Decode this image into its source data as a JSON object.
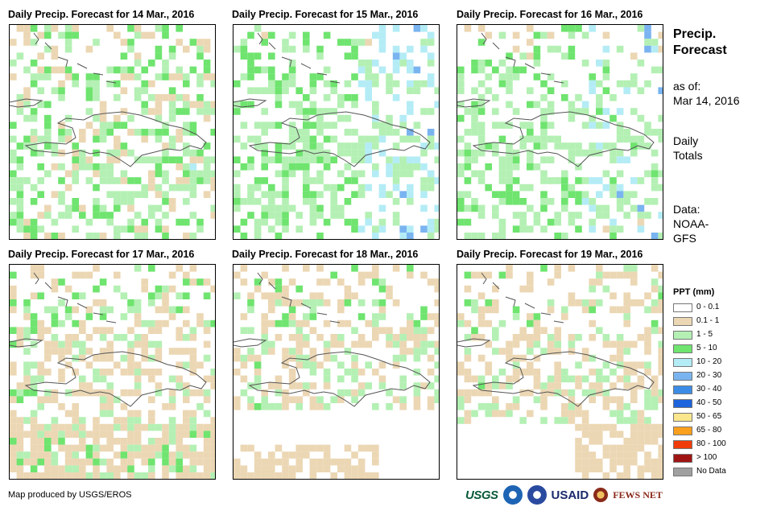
{
  "panels": [
    {
      "title": "Daily Precip. Forecast for 14 Mar., 2016"
    },
    {
      "title": "Daily Precip. Forecast for 15 Mar., 2016"
    },
    {
      "title": "Daily Precip. Forecast for 16 Mar., 2016"
    },
    {
      "title": "Daily Precip. Forecast for 17 Mar., 2016"
    },
    {
      "title": "Daily Precip. Forecast for 18 Mar., 2016"
    },
    {
      "title": "Daily Precip. Forecast for 19 Mar., 2016"
    }
  ],
  "side": {
    "title_line1": "Precip.",
    "title_line2": "Forecast",
    "asof_label": "as of:",
    "asof_date": "Mar 14, 2016",
    "totals_line1": "Daily",
    "totals_line2": "Totals",
    "data_line1": "Data:",
    "data_line2": "NOAA-",
    "data_line3": "GFS"
  },
  "legend": {
    "title": "PPT (mm)",
    "items": [
      {
        "label": "0 - 0.1",
        "color": "#ffffff"
      },
      {
        "label": "0.1 - 1",
        "color": "#ecd7b4"
      },
      {
        "label": "1 - 5",
        "color": "#b4f0b4"
      },
      {
        "label": "5 - 10",
        "color": "#6fe46f"
      },
      {
        "label": "10 - 20",
        "color": "#b4ecf6"
      },
      {
        "label": "20 - 30",
        "color": "#7ab4f0"
      },
      {
        "label": "30 - 40",
        "color": "#3c8ce6"
      },
      {
        "label": "40 - 50",
        "color": "#1e64dc"
      },
      {
        "label": "50 - 65",
        "color": "#fae68c"
      },
      {
        "label": "65 - 80",
        "color": "#faa01e"
      },
      {
        "label": "80 - 100",
        "color": "#f03c0a"
      },
      {
        "label": "> 100",
        "color": "#a01414"
      },
      {
        "label": "No Data",
        "color": "#a0a0a0"
      }
    ]
  },
  "footer": {
    "credit": "Map produced by USGS/EROS"
  },
  "logos": {
    "usgs": "USGS",
    "usaid": "USAID",
    "fews": "FEWS NET"
  }
}
